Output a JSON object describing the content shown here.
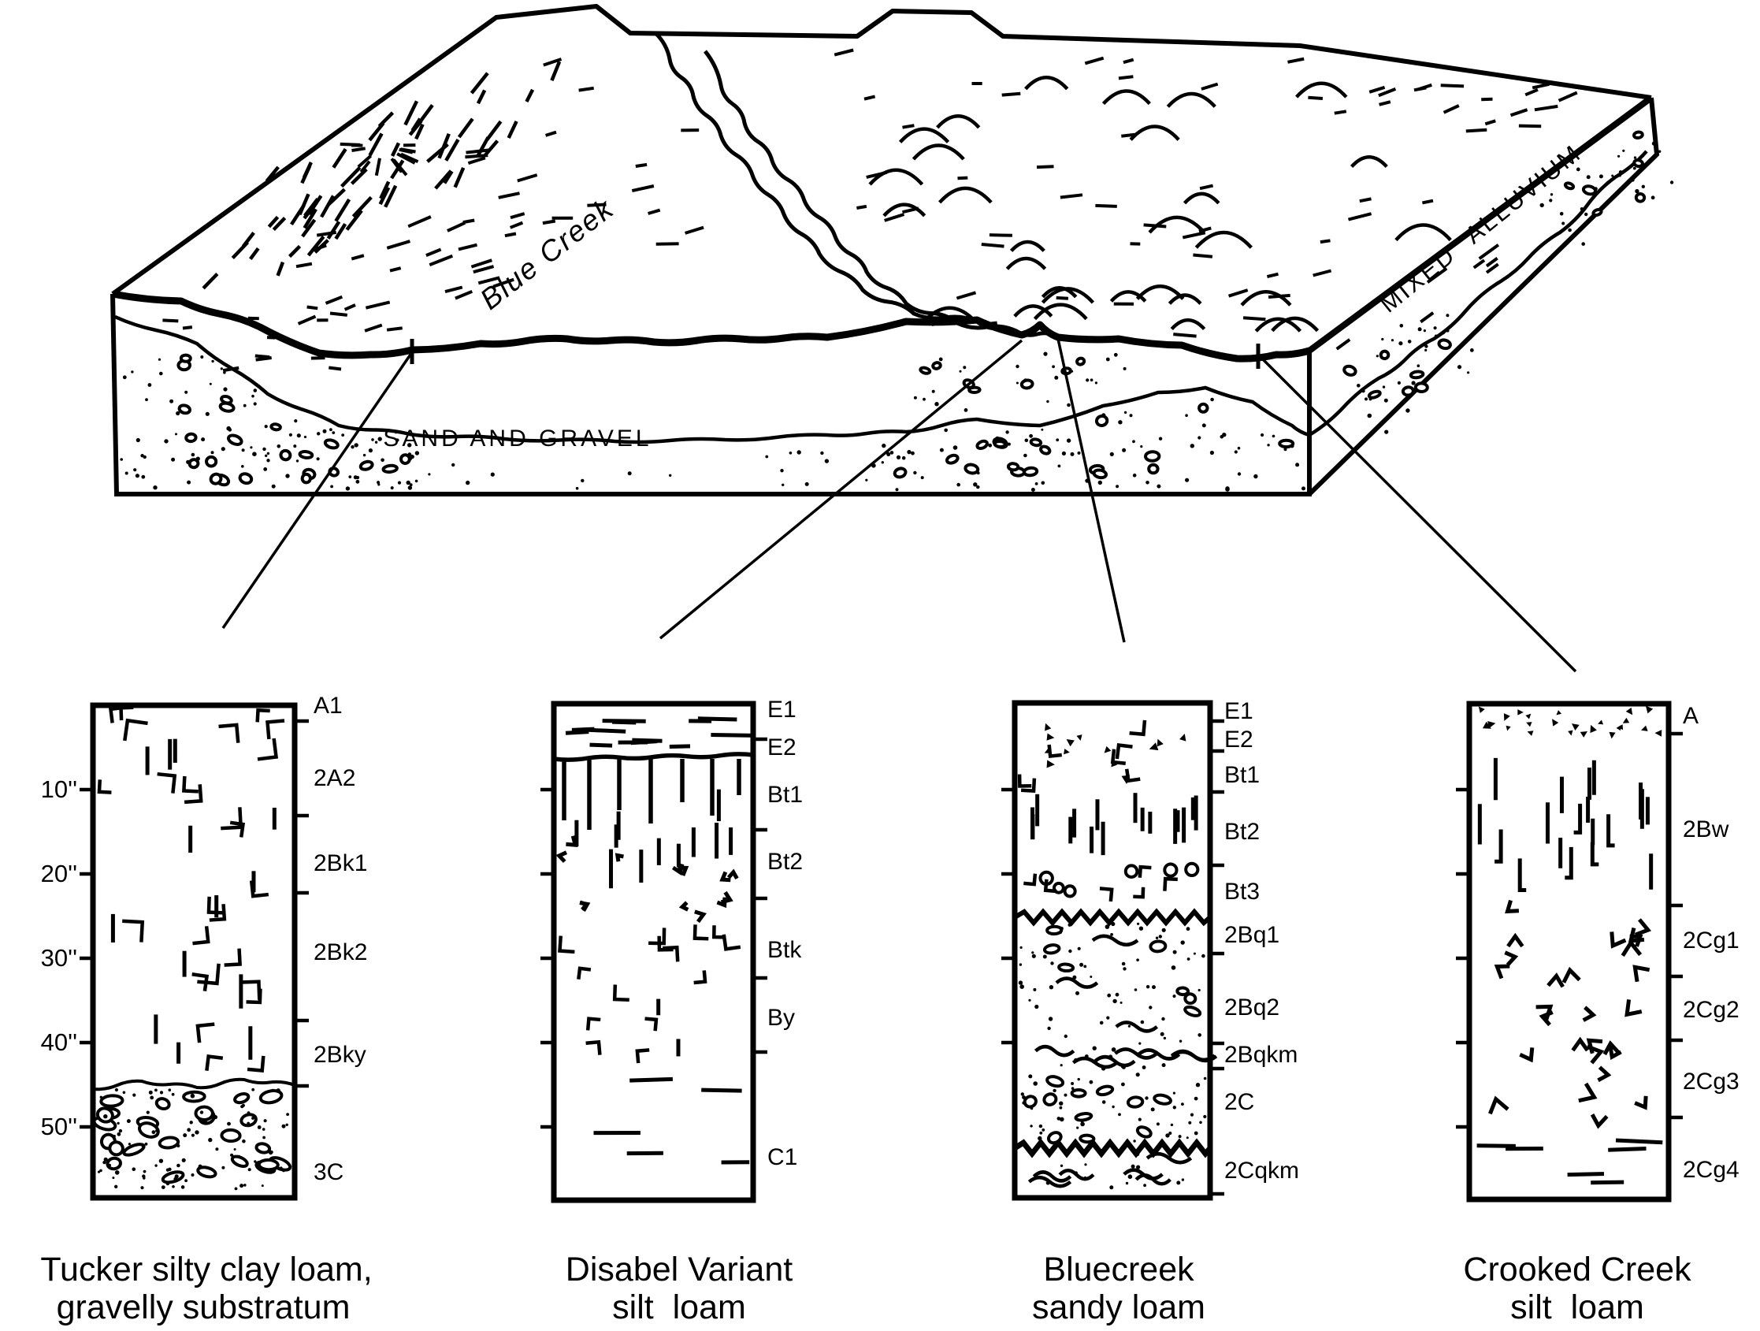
{
  "block": {
    "creek_label": "Blue Creek",
    "side_face_label": "MIXED ALLUVIUM",
    "substratum_label": "SAND AND GRAVEL"
  },
  "columns": [
    {
      "name": "Tucker",
      "caption_line1": "Tucker silty clay loam,",
      "caption_line2": "gravelly substratum",
      "depth_labels": [
        "10''",
        "20''",
        "30''",
        "40''",
        "50''"
      ],
      "horizons": [
        "A1",
        "2A2",
        "2Bk1",
        "2Bk2",
        "2Bky",
        "3C"
      ]
    },
    {
      "name": "Disabel Variant",
      "caption_line1": "Disabel Variant",
      "caption_line2": "silt  loam",
      "horizons": [
        "E1",
        "E2",
        "Bt1",
        "Bt2",
        "Btk",
        "By",
        "C1"
      ]
    },
    {
      "name": "Bluecreek",
      "caption_line1": "Bluecreek",
      "caption_line2": "sandy loam",
      "horizons": [
        "E1",
        "E2",
        "Bt1",
        "Bt2",
        "Bt3",
        "2Bq1",
        "2Bq2",
        "2Bqkm",
        "2C",
        "2Cqkm"
      ]
    },
    {
      "name": "Crooked Creek",
      "caption_line1": "Crooked Creek",
      "caption_line2": "silt  loam",
      "horizons": [
        "A",
        "2Bw",
        "2Cg1",
        "2Cg2",
        "2Cg3",
        "2Cg4"
      ]
    }
  ]
}
